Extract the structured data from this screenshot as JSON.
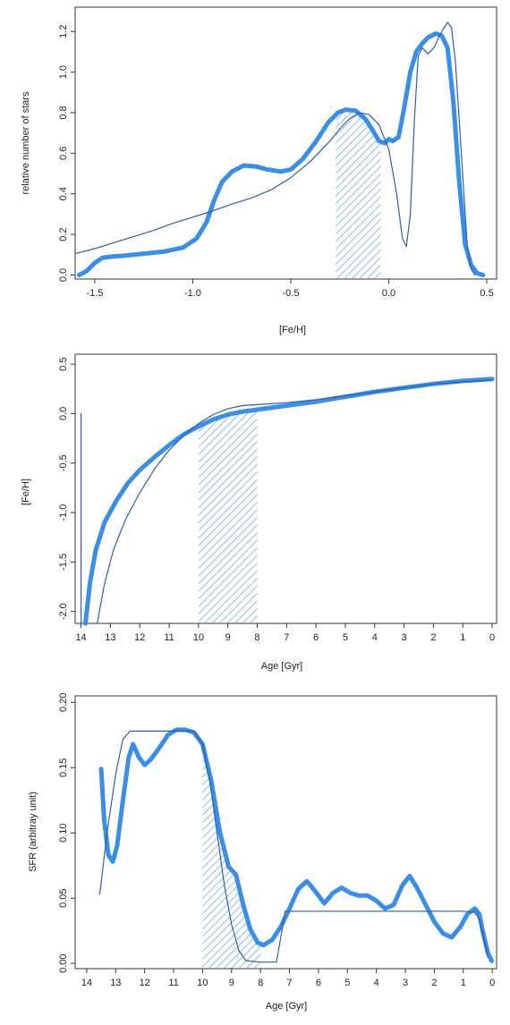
{
  "colors": {
    "thick": "#3a8ee6",
    "thin": "#2f5fa8",
    "hatch": "#5ba0ea",
    "frame": "#333333"
  },
  "chart_data": [
    {
      "type": "line",
      "xlabel": "[Fe/H]",
      "ylabel": "relative number of stars",
      "xlim": [
        -1.6,
        0.55
      ],
      "ylim": [
        -0.02,
        1.32
      ],
      "xticks": [
        -1.5,
        -1.0,
        -0.5,
        0.0,
        0.5
      ],
      "xtick_labels": [
        "-1.5",
        "-1.0",
        "-0.5",
        "0.0",
        "0.5"
      ],
      "yticks": [
        0.0,
        0.2,
        0.4,
        0.6,
        0.8,
        1.0,
        1.2
      ],
      "ytick_labels": [
        "0.0",
        "0.2",
        "0.4",
        "0.6",
        "0.8",
        "1.0",
        "1.2"
      ],
      "hatched_band": [
        -0.27,
        -0.04
      ],
      "series": [
        {
          "style": "thick",
          "points": [
            [
              -1.58,
              0.0
            ],
            [
              -1.54,
              0.02
            ],
            [
              -1.5,
              0.06
            ],
            [
              -1.46,
              0.085
            ],
            [
              -1.42,
              0.09
            ],
            [
              -1.35,
              0.095
            ],
            [
              -1.25,
              0.105
            ],
            [
              -1.15,
              0.115
            ],
            [
              -1.05,
              0.135
            ],
            [
              -0.98,
              0.18
            ],
            [
              -0.93,
              0.26
            ],
            [
              -0.89,
              0.37
            ],
            [
              -0.85,
              0.46
            ],
            [
              -0.8,
              0.51
            ],
            [
              -0.74,
              0.54
            ],
            [
              -0.68,
              0.535
            ],
            [
              -0.62,
              0.52
            ],
            [
              -0.55,
              0.51
            ],
            [
              -0.5,
              0.52
            ],
            [
              -0.44,
              0.57
            ],
            [
              -0.37,
              0.66
            ],
            [
              -0.31,
              0.75
            ],
            [
              -0.26,
              0.8
            ],
            [
              -0.22,
              0.815
            ],
            [
              -0.17,
              0.81
            ],
            [
              -0.12,
              0.77
            ],
            [
              -0.08,
              0.71
            ],
            [
              -0.05,
              0.66
            ],
            [
              -0.02,
              0.65
            ],
            [
              0.0,
              0.67
            ],
            [
              0.02,
              0.66
            ],
            [
              0.05,
              0.68
            ],
            [
              0.08,
              0.83
            ],
            [
              0.11,
              1.0
            ],
            [
              0.14,
              1.1
            ],
            [
              0.17,
              1.14
            ],
            [
              0.2,
              1.17
            ],
            [
              0.24,
              1.19
            ],
            [
              0.27,
              1.18
            ],
            [
              0.3,
              1.12
            ],
            [
              0.33,
              0.85
            ],
            [
              0.36,
              0.45
            ],
            [
              0.39,
              0.15
            ],
            [
              0.42,
              0.05
            ],
            [
              0.45,
              0.01
            ],
            [
              0.48,
              0.0
            ]
          ]
        },
        {
          "style": "thin",
          "points": [
            [
              -1.6,
              0.105
            ],
            [
              -1.5,
              0.13
            ],
            [
              -1.4,
              0.16
            ],
            [
              -1.3,
              0.19
            ],
            [
              -1.2,
              0.22
            ],
            [
              -1.1,
              0.255
            ],
            [
              -1.0,
              0.285
            ],
            [
              -0.9,
              0.315
            ],
            [
              -0.8,
              0.35
            ],
            [
              -0.7,
              0.38
            ],
            [
              -0.6,
              0.42
            ],
            [
              -0.5,
              0.48
            ],
            [
              -0.4,
              0.56
            ],
            [
              -0.3,
              0.66
            ],
            [
              -0.25,
              0.72
            ],
            [
              -0.2,
              0.77
            ],
            [
              -0.15,
              0.8
            ],
            [
              -0.1,
              0.79
            ],
            [
              -0.05,
              0.74
            ],
            [
              0.0,
              0.62
            ],
            [
              0.04,
              0.4
            ],
            [
              0.07,
              0.18
            ],
            [
              0.09,
              0.14
            ],
            [
              0.11,
              0.3
            ],
            [
              0.13,
              0.75
            ],
            [
              0.15,
              1.08
            ],
            [
              0.17,
              1.12
            ],
            [
              0.2,
              1.09
            ],
            [
              0.23,
              1.12
            ],
            [
              0.27,
              1.2
            ],
            [
              0.3,
              1.245
            ],
            [
              0.32,
              1.22
            ],
            [
              0.34,
              1.05
            ],
            [
              0.37,
              0.6
            ],
            [
              0.4,
              0.15
            ],
            [
              0.42,
              0.03
            ],
            [
              0.44,
              0.0
            ]
          ]
        }
      ]
    },
    {
      "type": "line",
      "xlabel": "Age [Gyr]",
      "ylabel": "[Fe/H]",
      "xlim": [
        14.2,
        -0.15
      ],
      "ylim": [
        -2.12,
        0.6
      ],
      "xticks": [
        14,
        13,
        12,
        11,
        10,
        9,
        8,
        7,
        6,
        5,
        4,
        3,
        2,
        1,
        0
      ],
      "xtick_labels": [
        "14",
        "13",
        "12",
        "11",
        "10",
        "9",
        "8",
        "7",
        "6",
        "5",
        "4",
        "3",
        "2",
        "1",
        "0"
      ],
      "yticks": [
        -2.0,
        -1.5,
        -1.0,
        -0.5,
        0.0,
        0.5
      ],
      "ytick_labels": [
        "-2.0",
        "-1.5",
        "-1.0",
        "-0.5",
        "0.0",
        "0.5"
      ],
      "hatched_band": [
        10,
        8
      ],
      "series": [
        {
          "style": "thick",
          "points": [
            [
              13.85,
              -2.12
            ],
            [
              13.7,
              -1.72
            ],
            [
              13.5,
              -1.38
            ],
            [
              13.2,
              -1.1
            ],
            [
              12.8,
              -0.88
            ],
            [
              12.4,
              -0.7
            ],
            [
              12.0,
              -0.57
            ],
            [
              11.5,
              -0.44
            ],
            [
              11.0,
              -0.32
            ],
            [
              10.5,
              -0.21
            ],
            [
              10.0,
              -0.13
            ],
            [
              9.5,
              -0.06
            ],
            [
              9.0,
              -0.01
            ],
            [
              8.5,
              0.02
            ],
            [
              8.0,
              0.04
            ],
            [
              7.0,
              0.08
            ],
            [
              6.0,
              0.12
            ],
            [
              5.0,
              0.17
            ],
            [
              4.0,
              0.22
            ],
            [
              3.0,
              0.26
            ],
            [
              2.0,
              0.3
            ],
            [
              1.0,
              0.33
            ],
            [
              0.0,
              0.35
            ]
          ]
        },
        {
          "style": "thin",
          "points": [
            [
              13.45,
              -2.12
            ],
            [
              13.2,
              -1.72
            ],
            [
              12.9,
              -1.38
            ],
            [
              12.5,
              -1.08
            ],
            [
              12.0,
              -0.8
            ],
            [
              11.5,
              -0.56
            ],
            [
              11.0,
              -0.37
            ],
            [
              10.5,
              -0.22
            ],
            [
              10.0,
              -0.1
            ],
            [
              9.5,
              -0.01
            ],
            [
              9.0,
              0.05
            ],
            [
              8.5,
              0.08
            ],
            [
              8.0,
              0.09
            ],
            [
              7.0,
              0.11
            ],
            [
              6.0,
              0.14
            ],
            [
              5.0,
              0.18
            ],
            [
              4.0,
              0.22
            ],
            [
              3.0,
              0.26
            ],
            [
              2.0,
              0.3
            ],
            [
              1.0,
              0.32
            ],
            [
              0.0,
              0.34
            ]
          ]
        },
        {
          "style": "thin",
          "points": [
            [
              14.0,
              0.0
            ],
            [
              14.0,
              -2.12
            ]
          ]
        }
      ]
    },
    {
      "type": "line",
      "xlabel": "Age [Gyr]",
      "ylabel": "SFR (arbitray unit)",
      "xlim": [
        14.4,
        -0.15
      ],
      "ylim": [
        -0.004,
        0.205
      ],
      "xticks": [
        14,
        13,
        12,
        11,
        10,
        9,
        8,
        7,
        6,
        5,
        4,
        3,
        2,
        1,
        0
      ],
      "xtick_labels": [
        "14",
        "13",
        "12",
        "11",
        "10",
        "9",
        "8",
        "7",
        "6",
        "5",
        "4",
        "3",
        "2",
        "1",
        "0"
      ],
      "yticks": [
        0.0,
        0.05,
        0.1,
        0.15,
        0.2
      ],
      "ytick_labels": [
        "0.00",
        "0.05",
        "0.10",
        "0.15",
        "0.20"
      ],
      "hatched_band": [
        10,
        8
      ],
      "series": [
        {
          "style": "thick",
          "points": [
            [
              13.5,
              0.149
            ],
            [
              13.4,
              0.11
            ],
            [
              13.25,
              0.083
            ],
            [
              13.1,
              0.078
            ],
            [
              12.95,
              0.09
            ],
            [
              12.75,
              0.125
            ],
            [
              12.55,
              0.158
            ],
            [
              12.4,
              0.168
            ],
            [
              12.2,
              0.158
            ],
            [
              12.0,
              0.152
            ],
            [
              11.8,
              0.156
            ],
            [
              11.5,
              0.165
            ],
            [
              11.2,
              0.175
            ],
            [
              10.9,
              0.179
            ],
            [
              10.6,
              0.179
            ],
            [
              10.3,
              0.177
            ],
            [
              10.0,
              0.168
            ],
            [
              9.7,
              0.14
            ],
            [
              9.4,
              0.1
            ],
            [
              9.1,
              0.074
            ],
            [
              8.85,
              0.068
            ],
            [
              8.6,
              0.045
            ],
            [
              8.35,
              0.026
            ],
            [
              8.1,
              0.016
            ],
            [
              7.9,
              0.014
            ],
            [
              7.6,
              0.018
            ],
            [
              7.3,
              0.028
            ],
            [
              7.0,
              0.042
            ],
            [
              6.7,
              0.057
            ],
            [
              6.4,
              0.063
            ],
            [
              6.1,
              0.055
            ],
            [
              5.8,
              0.046
            ],
            [
              5.5,
              0.054
            ],
            [
              5.2,
              0.058
            ],
            [
              4.9,
              0.054
            ],
            [
              4.6,
              0.052
            ],
            [
              4.3,
              0.052
            ],
            [
              4.0,
              0.048
            ],
            [
              3.7,
              0.042
            ],
            [
              3.4,
              0.045
            ],
            [
              3.1,
              0.06
            ],
            [
              2.85,
              0.067
            ],
            [
              2.6,
              0.058
            ],
            [
              2.3,
              0.045
            ],
            [
              2.0,
              0.032
            ],
            [
              1.7,
              0.023
            ],
            [
              1.4,
              0.02
            ],
            [
              1.1,
              0.028
            ],
            [
              0.85,
              0.038
            ],
            [
              0.6,
              0.042
            ],
            [
              0.45,
              0.038
            ],
            [
              0.3,
              0.022
            ],
            [
              0.15,
              0.008
            ],
            [
              0.02,
              0.002
            ]
          ]
        },
        {
          "style": "thin",
          "points": [
            [
              13.55,
              0.053
            ],
            [
              13.3,
              0.1
            ],
            [
              13.0,
              0.145
            ],
            [
              12.75,
              0.172
            ],
            [
              12.5,
              0.178
            ],
            [
              11.0,
              0.178
            ],
            [
              10.3,
              0.178
            ],
            [
              10.0,
              0.168
            ],
            [
              9.75,
              0.14
            ],
            [
              9.5,
              0.1
            ],
            [
              9.25,
              0.06
            ],
            [
              9.0,
              0.03
            ],
            [
              8.75,
              0.01
            ],
            [
              8.5,
              0.002
            ],
            [
              8.0,
              0.001
            ],
            [
              7.45,
              0.001
            ],
            [
              7.3,
              0.02
            ],
            [
              7.15,
              0.04
            ],
            [
              6.5,
              0.04
            ],
            [
              1.0,
              0.04
            ],
            [
              0.6,
              0.039
            ],
            [
              0.45,
              0.034
            ],
            [
              0.3,
              0.02
            ],
            [
              0.15,
              0.005
            ]
          ]
        }
      ]
    }
  ]
}
